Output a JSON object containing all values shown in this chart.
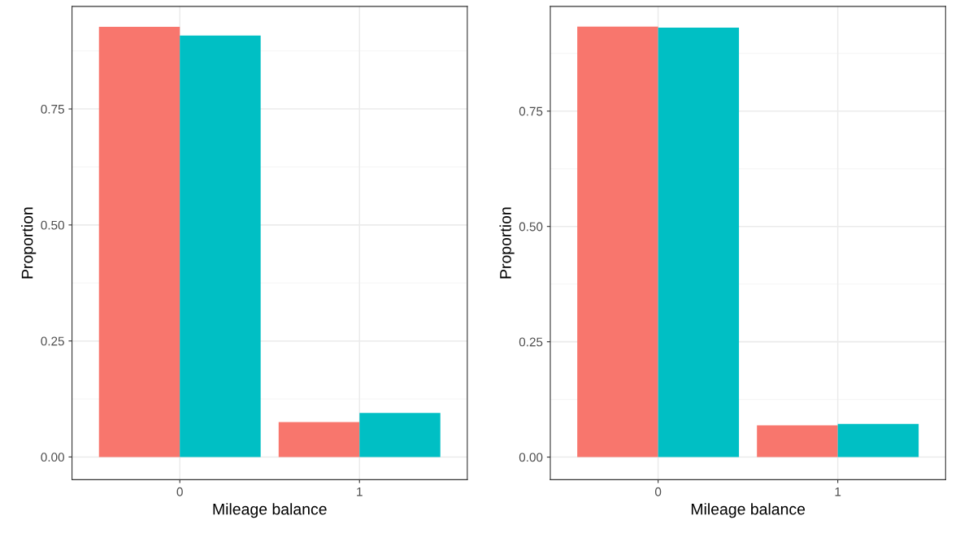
{
  "chart_data": [
    {
      "type": "bar",
      "xlabel": "Mileage balance",
      "ylabel": "Proportion",
      "categories": [
        "0",
        "1"
      ],
      "ylim": [
        -0.049,
        0.971
      ],
      "yticks": [
        {
          "value": 0,
          "label": "0.00"
        },
        {
          "value": 0.25,
          "label": "0.25"
        },
        {
          "value": 0.5,
          "label": "0.50"
        },
        {
          "value": 0.75,
          "label": "0.75"
        }
      ],
      "grid": true,
      "series": [
        {
          "color": "#f8766d",
          "values": [
            0.927,
            0.075
          ]
        },
        {
          "color": "#00bfc4",
          "values": [
            0.908,
            0.095
          ]
        }
      ]
    },
    {
      "type": "bar",
      "xlabel": "Mileage balance",
      "ylabel": "Proportion",
      "categories": [
        "0",
        "1"
      ],
      "ylim": [
        -0.049,
        0.977
      ],
      "yticks": [
        {
          "value": 0,
          "label": "0.00"
        },
        {
          "value": 0.25,
          "label": "0.25"
        },
        {
          "value": 0.5,
          "label": "0.50"
        },
        {
          "value": 0.75,
          "label": "0.75"
        }
      ],
      "grid": true,
      "series": [
        {
          "color": "#f8766d",
          "values": [
            0.933,
            0.069
          ]
        },
        {
          "color": "#00bfc4",
          "values": [
            0.931,
            0.072
          ]
        }
      ]
    }
  ]
}
